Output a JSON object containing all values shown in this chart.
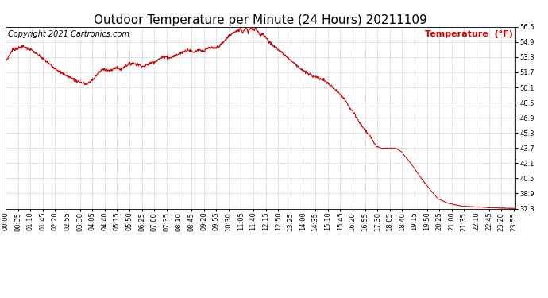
{
  "title": "Outdoor Temperature per Minute (24 Hours) 20211109",
  "copyright_text": "Copyright 2021 Cartronics.com",
  "legend_text": "Temperature  (°F)",
  "line_color": "#cc0000",
  "background_color": "#ffffff",
  "grid_color": "#aaaaaa",
  "text_color": "#000000",
  "legend_color": "#cc0000",
  "copyright_color": "#000000",
  "ylim": [
    37.3,
    56.5
  ],
  "yticks": [
    37.3,
    38.9,
    40.5,
    42.1,
    43.7,
    45.3,
    46.9,
    48.5,
    50.1,
    51.7,
    53.3,
    54.9,
    56.5
  ],
  "title_fontsize": 11,
  "axis_fontsize": 6,
  "legend_fontsize": 8,
  "copyright_fontsize": 7,
  "waypoints": [
    [
      0,
      52.8
    ],
    [
      20,
      54.1
    ],
    [
      50,
      54.4
    ],
    [
      75,
      54.0
    ],
    [
      100,
      53.3
    ],
    [
      130,
      52.4
    ],
    [
      160,
      51.6
    ],
    [
      200,
      50.8
    ],
    [
      230,
      50.4
    ],
    [
      248,
      51.0
    ],
    [
      265,
      51.7
    ],
    [
      278,
      52.1
    ],
    [
      295,
      51.8
    ],
    [
      310,
      52.2
    ],
    [
      325,
      52.0
    ],
    [
      340,
      52.4
    ],
    [
      358,
      52.7
    ],
    [
      375,
      52.5
    ],
    [
      390,
      52.3
    ],
    [
      405,
      52.6
    ],
    [
      420,
      52.8
    ],
    [
      435,
      53.1
    ],
    [
      450,
      53.4
    ],
    [
      465,
      53.2
    ],
    [
      480,
      53.5
    ],
    [
      500,
      53.8
    ],
    [
      515,
      54.1
    ],
    [
      530,
      53.8
    ],
    [
      545,
      54.1
    ],
    [
      560,
      53.9
    ],
    [
      575,
      54.3
    ],
    [
      590,
      54.2
    ],
    [
      605,
      54.5
    ],
    [
      618,
      55.0
    ],
    [
      632,
      55.6
    ],
    [
      645,
      55.9
    ],
    [
      658,
      56.1
    ],
    [
      663,
      56.35
    ],
    [
      670,
      55.9
    ],
    [
      675,
      56.25
    ],
    [
      680,
      56.4
    ],
    [
      685,
      56.0
    ],
    [
      690,
      56.3
    ],
    [
      695,
      56.35
    ],
    [
      700,
      56.15
    ],
    [
      706,
      56.3
    ],
    [
      712,
      55.95
    ],
    [
      720,
      55.7
    ],
    [
      728,
      55.75
    ],
    [
      733,
      55.45
    ],
    [
      738,
      55.25
    ],
    [
      743,
      55.0
    ],
    [
      748,
      54.75
    ],
    [
      757,
      54.45
    ],
    [
      770,
      54.1
    ],
    [
      784,
      53.7
    ],
    [
      795,
      53.3
    ],
    [
      807,
      52.9
    ],
    [
      818,
      52.6
    ],
    [
      832,
      52.1
    ],
    [
      847,
      51.7
    ],
    [
      862,
      51.4
    ],
    [
      877,
      51.2
    ],
    [
      898,
      50.9
    ],
    [
      918,
      50.3
    ],
    [
      938,
      49.6
    ],
    [
      958,
      48.8
    ],
    [
      973,
      47.9
    ],
    [
      988,
      47.1
    ],
    [
      1003,
      46.2
    ],
    [
      1018,
      45.5
    ],
    [
      1033,
      44.7
    ],
    [
      1048,
      43.9
    ],
    [
      1063,
      43.65
    ],
    [
      1078,
      43.7
    ],
    [
      1090,
      43.7
    ],
    [
      1103,
      43.65
    ],
    [
      1118,
      43.3
    ],
    [
      1133,
      42.6
    ],
    [
      1148,
      41.9
    ],
    [
      1163,
      41.1
    ],
    [
      1178,
      40.3
    ],
    [
      1193,
      39.6
    ],
    [
      1208,
      38.9
    ],
    [
      1223,
      38.3
    ],
    [
      1250,
      37.85
    ],
    [
      1290,
      37.55
    ],
    [
      1370,
      37.4
    ],
    [
      1439,
      37.3
    ]
  ]
}
